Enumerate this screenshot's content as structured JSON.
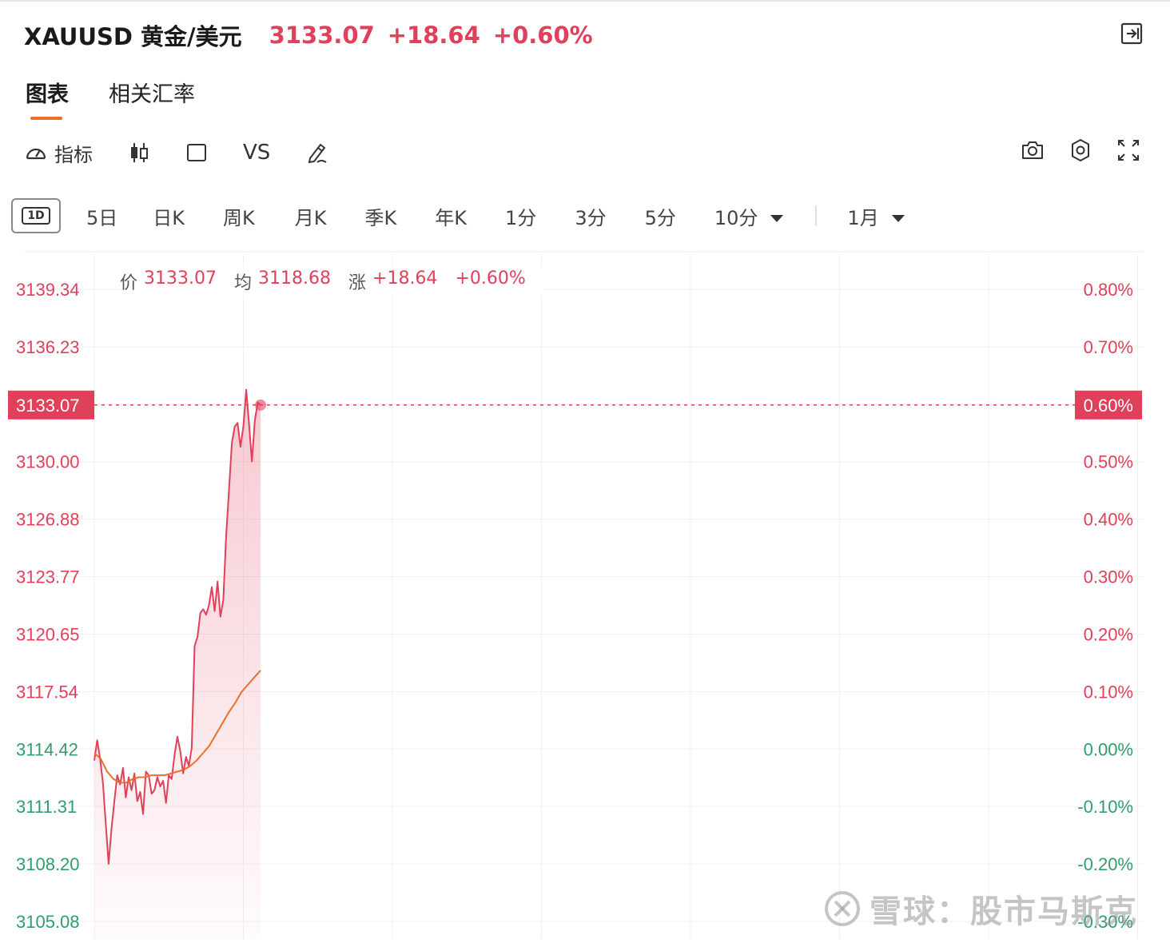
{
  "header": {
    "title": "XAUUSD 黄金/美元",
    "price": "3133.07",
    "change": "+18.64",
    "change_pct": "+0.60%"
  },
  "tabs": [
    {
      "label": "图表",
      "active": true
    },
    {
      "label": "相关汇率",
      "active": false
    }
  ],
  "toolbar": {
    "indicator_label": "指标",
    "vs_label": "VS"
  },
  "periods": {
    "selected": "1D",
    "items": [
      "5日",
      "日K",
      "周K",
      "月K",
      "季K",
      "年K",
      "1分",
      "3分",
      "5分"
    ],
    "dropdown_interval": "10分",
    "dropdown_range": "1月"
  },
  "info_bar": {
    "price_key": "价",
    "price_val": "3133.07",
    "avg_key": "均",
    "avg_val": "3118.68",
    "chg_key": "涨",
    "chg_val": "+18.64",
    "pct_val": "+0.60%"
  },
  "colors": {
    "up": "#e0405a",
    "down": "#2e9e6b",
    "avg_line": "#e8702a",
    "accent": "#e8702a"
  },
  "watermark": "雪球：股市马斯克",
  "chart_data": {
    "type": "line",
    "left_axis_ticks": [
      "3139.34",
      "3136.23",
      "3133.07",
      "3130.00",
      "3126.88",
      "3123.77",
      "3120.65",
      "3117.54",
      "3114.42",
      "3111.31",
      "3108.20",
      "3105.08"
    ],
    "right_axis_ticks": [
      "0.80%",
      "0.70%",
      "0.60%",
      "0.50%",
      "0.40%",
      "0.30%",
      "0.20%",
      "0.10%",
      "0.00%",
      "-0.10%",
      "-0.20%",
      "-0.30%"
    ],
    "ylim": [
      3105.08,
      3139.34
    ],
    "prev_close": 3114.43,
    "current_price": 3133.07,
    "current_price_label": "3133.07",
    "current_pct_label": "0.60%",
    "x_total_points": 720,
    "series": [
      {
        "name": "价",
        "values": [
          3113.8,
          3114.9,
          3113.9,
          3112.6,
          3110.4,
          3108.2,
          3110.1,
          3111.6,
          3113.0,
          3112.5,
          3113.4,
          3111.8,
          3112.9,
          3112.2,
          3113.1,
          3111.6,
          3112.1,
          3110.9,
          3113.2,
          3113.0,
          3112.0,
          3112.2,
          3112.9,
          3112.4,
          3112.7,
          3111.5,
          3113.0,
          3112.8,
          3114.1,
          3115.1,
          3114.3,
          3113.1,
          3114.0,
          3113.5,
          3114.5,
          3120.0,
          3120.5,
          3121.8,
          3122.0,
          3121.7,
          3122.2,
          3123.2,
          3121.9,
          3123.5,
          3121.6,
          3122.5,
          3126.0,
          3128.5,
          3131.0,
          3131.9,
          3132.1,
          3130.8,
          3131.9,
          3133.9,
          3132.0,
          3130.0,
          3132.2,
          3133.2,
          3133.07
        ],
        "color": "#e0405a"
      },
      {
        "name": "均",
        "values": [
          3114.2,
          3113.9,
          3113.2,
          3112.8,
          3112.6,
          3112.6,
          3112.8,
          3112.9,
          3112.9,
          3113.0,
          3113.0,
          3113.0,
          3113.1,
          3113.2,
          3113.3,
          3113.5,
          3113.8,
          3114.2,
          3114.6,
          3115.2,
          3115.8,
          3116.4,
          3116.9,
          3117.5,
          3117.9,
          3118.3,
          3118.68
        ],
        "color": "#e8702a"
      }
    ]
  }
}
